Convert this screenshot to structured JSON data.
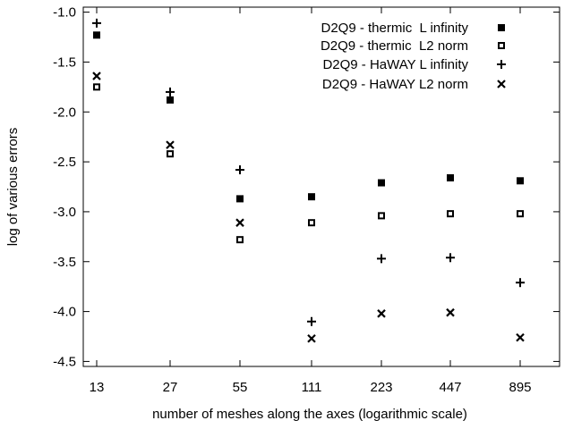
{
  "chart_data": {
    "type": "scatter",
    "title": "",
    "xlabel": "number of meshes along the axes (logarithmic scale)",
    "ylabel": "log of various errors",
    "x_scale": "log",
    "categories": [
      "13",
      "27",
      "55",
      "111",
      "223",
      "447",
      "895"
    ],
    "x": [
      13,
      27,
      55,
      111,
      223,
      447,
      895
    ],
    "ylim": [
      -4.55,
      -0.95
    ],
    "yticks": [
      "-1.0",
      "-1.5",
      "-2.0",
      "-2.5",
      "-3.0",
      "-3.5",
      "-4.0",
      "-4.5"
    ],
    "ytick_values": [
      -1.0,
      -1.5,
      -2.0,
      -2.5,
      -3.0,
      -3.5,
      -4.0,
      -4.5
    ],
    "grid": false,
    "legend_position": "top-right",
    "series": [
      {
        "name": "D2Q9 - thermic  L infinity",
        "marker": "filled-square",
        "values": [
          -1.23,
          -1.88,
          -2.87,
          -2.85,
          -2.71,
          -2.66,
          -2.69
        ]
      },
      {
        "name": "D2Q9 - thermic  L2 norm",
        "marker": "open-square",
        "values": [
          -1.75,
          -2.42,
          -3.28,
          -3.11,
          -3.04,
          -3.02,
          -3.02
        ]
      },
      {
        "name": "D2Q9 - HaWAY L infinity",
        "marker": "plus",
        "values": [
          -1.11,
          -1.8,
          -2.58,
          -4.1,
          -3.47,
          -3.46,
          -3.71
        ]
      },
      {
        "name": "D2Q9 - HaWAY L2 norm",
        "marker": "cross",
        "values": [
          -1.64,
          -2.33,
          -3.11,
          -4.27,
          -4.02,
          -4.01,
          -4.26
        ]
      }
    ],
    "color": "#000000"
  }
}
